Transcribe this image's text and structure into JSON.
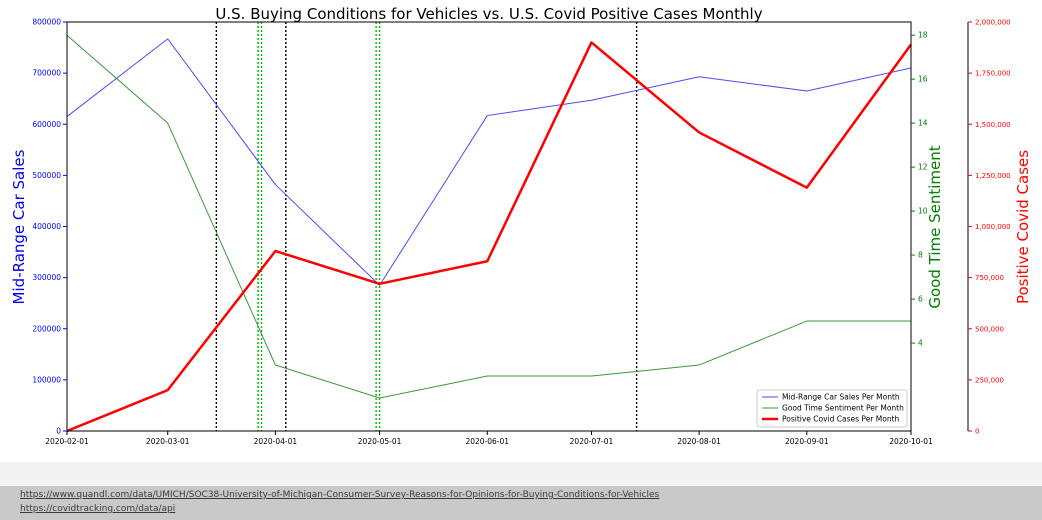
{
  "chart_data": {
    "type": "line",
    "title": "U.S. Buying Conditions for Vehicles vs. U.S. Covid Positive Cases Monthly",
    "x": [
      "2020-02-01",
      "2020-03-01",
      "2020-04-01",
      "2020-05-01",
      "2020-06-01",
      "2020-07-01",
      "2020-08-01",
      "2020-09-01",
      "2020-10-01"
    ],
    "x_tick_labels": [
      "2020-02-01",
      "2020-03-01",
      "2020-04-01",
      "2020-05-01",
      "2020-06-01",
      "2020-07-01",
      "2020-08-01",
      "2020-09-01",
      "2020-10-01"
    ],
    "axes": {
      "left": {
        "label": "Mid-Range Car Sales",
        "color": "#0000ff",
        "ylim": [
          0,
          800000
        ],
        "ticks": [
          0,
          100000,
          200000,
          300000,
          400000,
          500000,
          600000,
          700000,
          800000
        ],
        "tick_labels": [
          "0",
          "100000",
          "200000",
          "300000",
          "400000",
          "500000",
          "600000",
          "700000",
          "800000"
        ]
      },
      "right1": {
        "label": "Good Time Sentiment",
        "color": "#008000",
        "ylim": [
          0,
          18.6
        ],
        "ticks": [
          4,
          6,
          8,
          10,
          12,
          14,
          16,
          18
        ],
        "tick_labels": [
          "4",
          "6",
          "8",
          "10",
          "12",
          "14",
          "16",
          "18"
        ]
      },
      "right2": {
        "label": "Positive Covid Cases",
        "color": "#ff0000",
        "ylim": [
          0,
          2000000
        ],
        "ticks": [
          0,
          250000,
          500000,
          750000,
          1000000,
          1250000,
          1500000,
          1750000,
          2000000
        ],
        "tick_labels": [
          "0",
          "250,000",
          "500,000",
          "750,000",
          "1,000,000",
          "1,250,000",
          "1,500,000",
          "1,750,000",
          "2,000,000"
        ]
      }
    },
    "series": [
      {
        "name": "Mid-Range Car Sales Per Month",
        "axis": "left",
        "color": "#4a4aff",
        "width": 1,
        "values": [
          615000,
          767000,
          482000,
          285000,
          617000,
          647000,
          693000,
          665000,
          710000
        ]
      },
      {
        "name": "Good Time Sentiment Per Month",
        "axis": "right1",
        "color": "#3a9a3a",
        "width": 1,
        "values": [
          18,
          14,
          3,
          1.5,
          2.5,
          2.5,
          3,
          5,
          5
        ]
      },
      {
        "name": "Positive Covid Cases Per Month",
        "axis": "right2",
        "color": "#ff0000",
        "width": 2.5,
        "values": [
          0,
          200000,
          880000,
          720000,
          830000,
          1900000,
          1460000,
          1190000,
          1890000
        ]
      }
    ],
    "vlines_black": [
      "2020-03-15",
      "2020-04-04"
    ],
    "vlines_black_late": [
      "2020-07-14"
    ],
    "vlines_green": [
      "2020-03-27",
      "2020-03-28",
      "2020-04-30",
      "2020-05-01"
    ],
    "legend": "lower-right",
    "grid": false
  },
  "sources": {
    "link1": "https://www.quandl.com/data/UMICH/SOC38-University-of-Michigan-Consumer-Survey-Reasons-for-Opinions-for-Buying-Conditions-for-Vehicles",
    "link2": "https://covidtracking.com/data/api"
  }
}
